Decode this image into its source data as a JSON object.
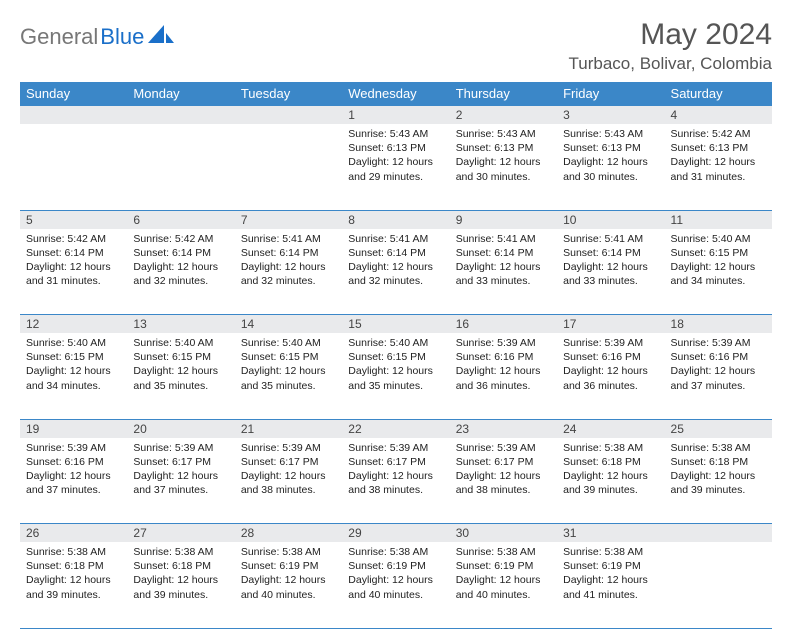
{
  "logo": {
    "gray": "General",
    "blue": "Blue"
  },
  "title": "May 2024",
  "location": "Turbaco, Bolivar, Colombia",
  "colors": {
    "header_bg": "#3b87c8",
    "header_text": "#ffffff",
    "daynum_bg": "#e9eaec",
    "border": "#3b87c8",
    "logo_gray": "#777777",
    "logo_blue": "#1a6fc9",
    "title_color": "#555555"
  },
  "weekdays": [
    "Sunday",
    "Monday",
    "Tuesday",
    "Wednesday",
    "Thursday",
    "Friday",
    "Saturday"
  ],
  "weeks": [
    [
      null,
      null,
      null,
      {
        "n": 1,
        "sr": "5:43 AM",
        "ss": "6:13 PM",
        "dl": "12 hours and 29 minutes."
      },
      {
        "n": 2,
        "sr": "5:43 AM",
        "ss": "6:13 PM",
        "dl": "12 hours and 30 minutes."
      },
      {
        "n": 3,
        "sr": "5:43 AM",
        "ss": "6:13 PM",
        "dl": "12 hours and 30 minutes."
      },
      {
        "n": 4,
        "sr": "5:42 AM",
        "ss": "6:13 PM",
        "dl": "12 hours and 31 minutes."
      }
    ],
    [
      {
        "n": 5,
        "sr": "5:42 AM",
        "ss": "6:14 PM",
        "dl": "12 hours and 31 minutes."
      },
      {
        "n": 6,
        "sr": "5:42 AM",
        "ss": "6:14 PM",
        "dl": "12 hours and 32 minutes."
      },
      {
        "n": 7,
        "sr": "5:41 AM",
        "ss": "6:14 PM",
        "dl": "12 hours and 32 minutes."
      },
      {
        "n": 8,
        "sr": "5:41 AM",
        "ss": "6:14 PM",
        "dl": "12 hours and 32 minutes."
      },
      {
        "n": 9,
        "sr": "5:41 AM",
        "ss": "6:14 PM",
        "dl": "12 hours and 33 minutes."
      },
      {
        "n": 10,
        "sr": "5:41 AM",
        "ss": "6:14 PM",
        "dl": "12 hours and 33 minutes."
      },
      {
        "n": 11,
        "sr": "5:40 AM",
        "ss": "6:15 PM",
        "dl": "12 hours and 34 minutes."
      }
    ],
    [
      {
        "n": 12,
        "sr": "5:40 AM",
        "ss": "6:15 PM",
        "dl": "12 hours and 34 minutes."
      },
      {
        "n": 13,
        "sr": "5:40 AM",
        "ss": "6:15 PM",
        "dl": "12 hours and 35 minutes."
      },
      {
        "n": 14,
        "sr": "5:40 AM",
        "ss": "6:15 PM",
        "dl": "12 hours and 35 minutes."
      },
      {
        "n": 15,
        "sr": "5:40 AM",
        "ss": "6:15 PM",
        "dl": "12 hours and 35 minutes."
      },
      {
        "n": 16,
        "sr": "5:39 AM",
        "ss": "6:16 PM",
        "dl": "12 hours and 36 minutes."
      },
      {
        "n": 17,
        "sr": "5:39 AM",
        "ss": "6:16 PM",
        "dl": "12 hours and 36 minutes."
      },
      {
        "n": 18,
        "sr": "5:39 AM",
        "ss": "6:16 PM",
        "dl": "12 hours and 37 minutes."
      }
    ],
    [
      {
        "n": 19,
        "sr": "5:39 AM",
        "ss": "6:16 PM",
        "dl": "12 hours and 37 minutes."
      },
      {
        "n": 20,
        "sr": "5:39 AM",
        "ss": "6:17 PM",
        "dl": "12 hours and 37 minutes."
      },
      {
        "n": 21,
        "sr": "5:39 AM",
        "ss": "6:17 PM",
        "dl": "12 hours and 38 minutes."
      },
      {
        "n": 22,
        "sr": "5:39 AM",
        "ss": "6:17 PM",
        "dl": "12 hours and 38 minutes."
      },
      {
        "n": 23,
        "sr": "5:39 AM",
        "ss": "6:17 PM",
        "dl": "12 hours and 38 minutes."
      },
      {
        "n": 24,
        "sr": "5:38 AM",
        "ss": "6:18 PM",
        "dl": "12 hours and 39 minutes."
      },
      {
        "n": 25,
        "sr": "5:38 AM",
        "ss": "6:18 PM",
        "dl": "12 hours and 39 minutes."
      }
    ],
    [
      {
        "n": 26,
        "sr": "5:38 AM",
        "ss": "6:18 PM",
        "dl": "12 hours and 39 minutes."
      },
      {
        "n": 27,
        "sr": "5:38 AM",
        "ss": "6:18 PM",
        "dl": "12 hours and 39 minutes."
      },
      {
        "n": 28,
        "sr": "5:38 AM",
        "ss": "6:19 PM",
        "dl": "12 hours and 40 minutes."
      },
      {
        "n": 29,
        "sr": "5:38 AM",
        "ss": "6:19 PM",
        "dl": "12 hours and 40 minutes."
      },
      {
        "n": 30,
        "sr": "5:38 AM",
        "ss": "6:19 PM",
        "dl": "12 hours and 40 minutes."
      },
      {
        "n": 31,
        "sr": "5:38 AM",
        "ss": "6:19 PM",
        "dl": "12 hours and 41 minutes."
      },
      null
    ]
  ],
  "labels": {
    "sunrise": "Sunrise:",
    "sunset": "Sunset:",
    "daylight": "Daylight:"
  }
}
